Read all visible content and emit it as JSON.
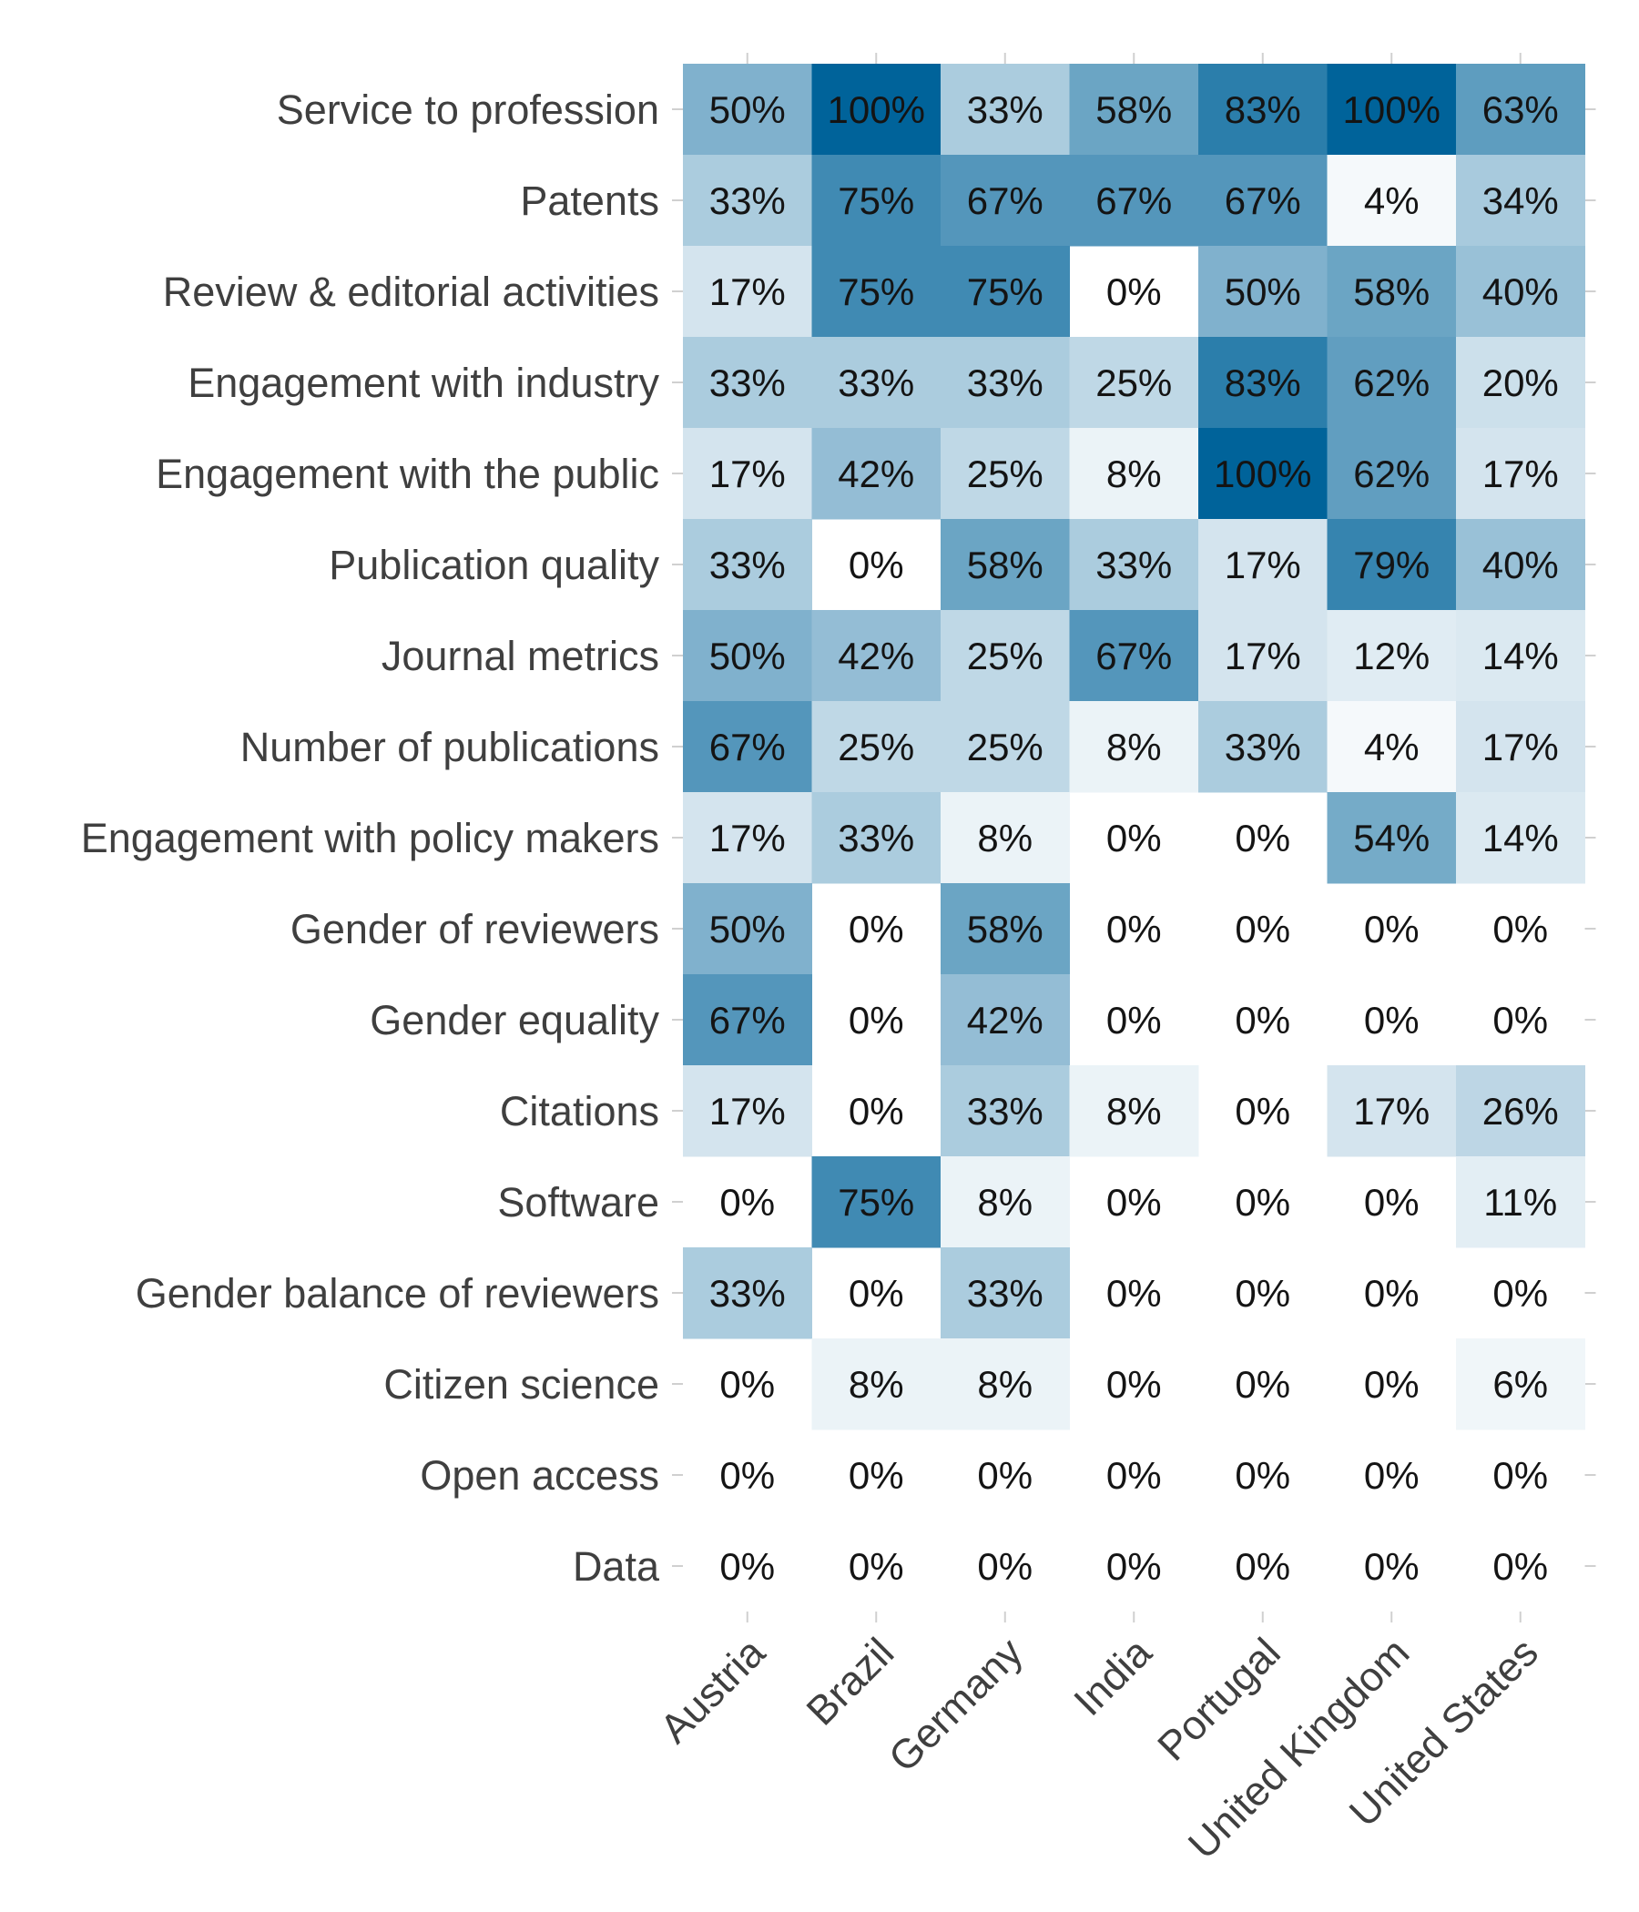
{
  "chart_data": {
    "type": "heatmap",
    "title": "",
    "xlabel": "",
    "ylabel": "",
    "columns": [
      "Austria",
      "Brazil",
      "Germany",
      "India",
      "Portugal",
      "United Kingdom",
      "United States"
    ],
    "rows": [
      "Service to profession",
      "Patents",
      "Review & editorial activities",
      "Engagement with industry",
      "Engagement with the public",
      "Publication quality",
      "Journal metrics",
      "Number of publications",
      "Engagement with policy makers",
      "Gender of reviewers",
      "Gender equality",
      "Citations",
      "Software",
      "Gender balance of reviewers",
      "Citizen science",
      "Open access",
      "Data"
    ],
    "values": [
      [
        50,
        100,
        33,
        58,
        83,
        100,
        63
      ],
      [
        33,
        75,
        67,
        67,
        67,
        4,
        34
      ],
      [
        17,
        75,
        75,
        0,
        50,
        58,
        40
      ],
      [
        33,
        33,
        33,
        25,
        83,
        62,
        20
      ],
      [
        17,
        42,
        25,
        8,
        100,
        62,
        17
      ],
      [
        33,
        0,
        58,
        33,
        17,
        79,
        40
      ],
      [
        50,
        42,
        25,
        67,
        17,
        12,
        14
      ],
      [
        67,
        25,
        25,
        8,
        33,
        4,
        17
      ],
      [
        17,
        33,
        8,
        0,
        0,
        54,
        14
      ],
      [
        50,
        0,
        58,
        0,
        0,
        0,
        0
      ],
      [
        67,
        0,
        42,
        0,
        0,
        0,
        0
      ],
      [
        17,
        0,
        33,
        8,
        0,
        17,
        26
      ],
      [
        0,
        75,
        8,
        0,
        0,
        0,
        11
      ],
      [
        33,
        0,
        33,
        0,
        0,
        0,
        0
      ],
      [
        0,
        8,
        8,
        0,
        0,
        0,
        6
      ],
      [
        0,
        0,
        0,
        0,
        0,
        0,
        0
      ],
      [
        0,
        0,
        0,
        0,
        0,
        0,
        0
      ]
    ],
    "value_suffix": "%",
    "value_range": [
      0,
      100
    ],
    "color_low": "#ffffff",
    "color_high": "#00639a",
    "grid": false,
    "legend": "none",
    "x_tick_rotation": -45
  }
}
